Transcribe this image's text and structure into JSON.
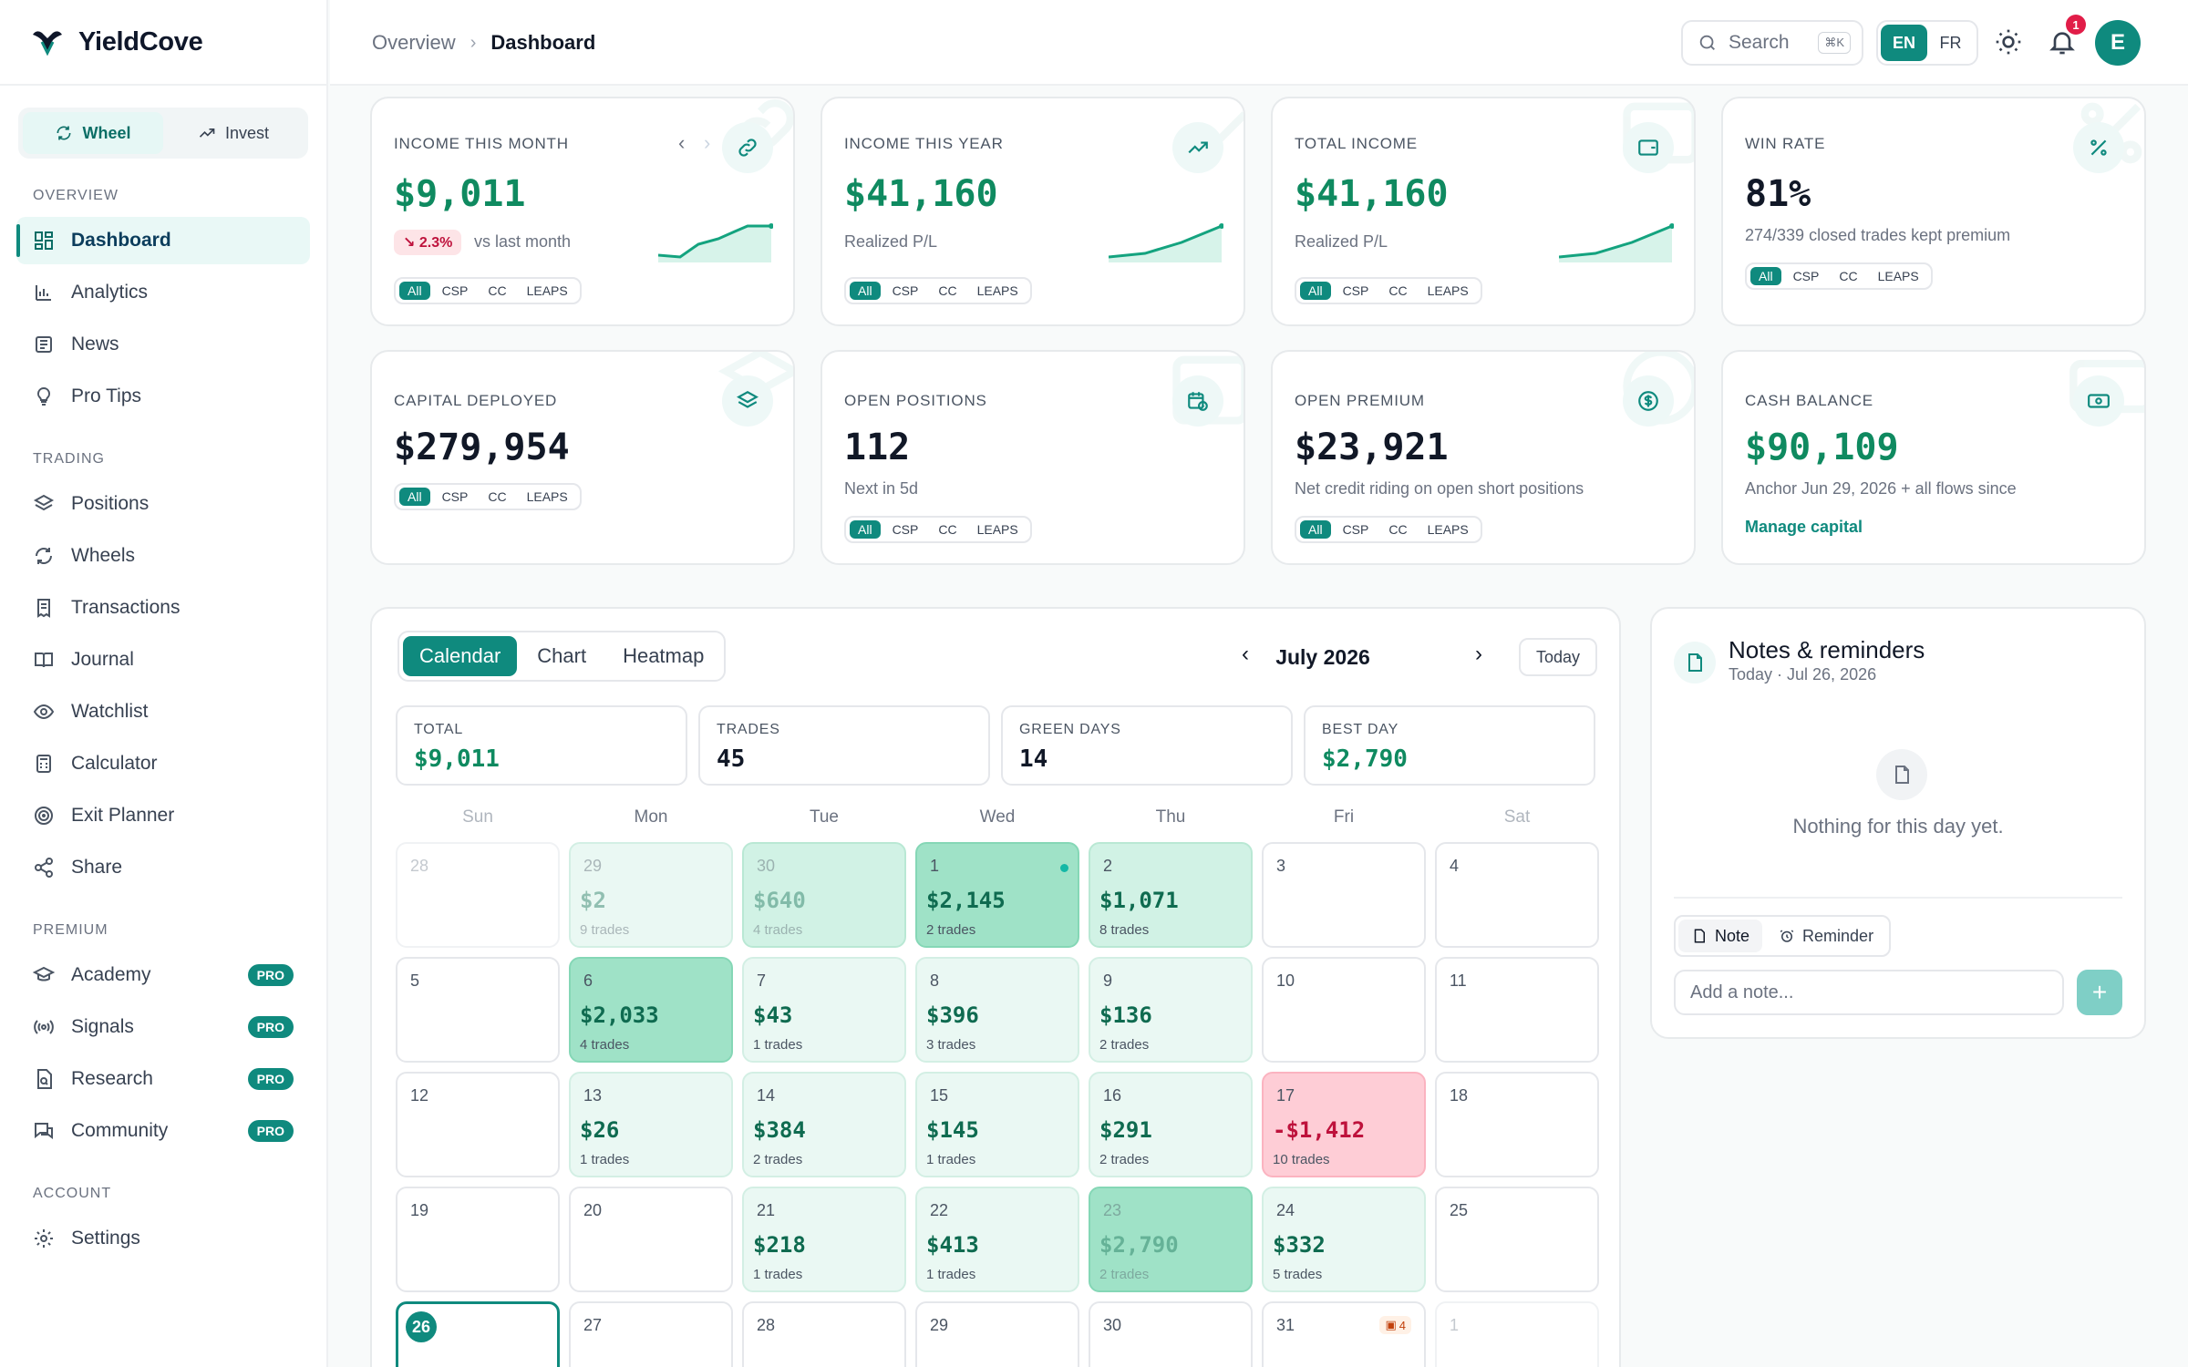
{
  "app": {
    "name": "YieldCove"
  },
  "mode_switch": [
    {
      "label": "Wheel",
      "icon": "refresh-icon",
      "active": true
    },
    {
      "label": "Invest",
      "icon": "trend-icon",
      "active": false
    }
  ],
  "sidebar": {
    "overview_label": "OVERVIEW",
    "trading_label": "TRADING",
    "premium_label": "PREMIUM",
    "account_label": "ACCOUNT",
    "items": [
      {
        "label": "Dashboard"
      },
      {
        "label": "Analytics"
      },
      {
        "label": "News"
      },
      {
        "label": "Pro Tips"
      },
      {
        "label": "Positions"
      },
      {
        "label": "Wheels"
      },
      {
        "label": "Transactions"
      },
      {
        "label": "Journal"
      },
      {
        "label": "Watchlist"
      },
      {
        "label": "Calculator"
      },
      {
        "label": "Exit Planner"
      },
      {
        "label": "Share"
      },
      {
        "label": "Academy",
        "badge": "PRO"
      },
      {
        "label": "Signals",
        "badge": "PRO"
      },
      {
        "label": "Research",
        "badge": "PRO"
      },
      {
        "label": "Community",
        "badge": "PRO"
      },
      {
        "label": "Settings"
      }
    ]
  },
  "header": {
    "breadcrumb": [
      "Overview",
      "Dashboard"
    ],
    "search_label": "Search",
    "search_shortcut": "⌘K",
    "lang": [
      "EN",
      "FR"
    ],
    "notification_count": "1",
    "avatar_initial": "E"
  },
  "filters": [
    "All",
    "CSP",
    "CC",
    "LEAPS"
  ],
  "kpis": [
    {
      "label": "INCOME THIS MONTH",
      "value": "$9,011",
      "delta": "↘ 2.3%",
      "sub": "vs last month"
    },
    {
      "label": "INCOME THIS YEAR",
      "value": "$41,160",
      "sub": "Realized P/L"
    },
    {
      "label": "TOTAL INCOME",
      "value": "$41,160",
      "sub": "Realized P/L"
    },
    {
      "label": "WIN RATE",
      "value": "81%",
      "sub": "274/339 closed trades kept premium"
    },
    {
      "label": "CAPITAL DEPLOYED",
      "value": "$279,954"
    },
    {
      "label": "OPEN POSITIONS",
      "value": "112",
      "sub": "Next in 5d"
    },
    {
      "label": "OPEN PREMIUM",
      "value": "$23,921",
      "sub": "Net credit riding on open short positions"
    },
    {
      "label": "CASH BALANCE",
      "value": "$90,109",
      "sub": "Anchor Jun 29, 2026 + all flows since",
      "link": "Manage capital"
    }
  ],
  "calendar": {
    "tabs": [
      "Calendar",
      "Chart",
      "Heatmap"
    ],
    "month": "July 2026",
    "today_label": "Today",
    "stats": [
      {
        "label": "TOTAL",
        "value": "$9,011"
      },
      {
        "label": "TRADES",
        "value": "45"
      },
      {
        "label": "GREEN DAYS",
        "value": "14"
      },
      {
        "label": "BEST DAY",
        "value": "$2,790"
      }
    ],
    "weekdays": [
      "Sun",
      "Mon",
      "Tue",
      "Wed",
      "Thu",
      "Fri",
      "Sat"
    ],
    "days": [
      {
        "d": "28",
        "amt": "",
        "tr": "",
        "lvl": "ghost"
      },
      {
        "d": "29",
        "amt": "$2",
        "tr": "9 trades",
        "lvl": "l1 muted"
      },
      {
        "d": "30",
        "amt": "$640",
        "tr": "4 trades",
        "lvl": "l2 muted"
      },
      {
        "d": "1",
        "amt": "$2,145",
        "tr": "2 trades",
        "lvl": "l3"
      },
      {
        "d": "2",
        "amt": "$1,071",
        "tr": "8 trades",
        "lvl": "l2"
      },
      {
        "d": "3",
        "amt": "",
        "tr": "",
        "lvl": ""
      },
      {
        "d": "4",
        "amt": "",
        "tr": "",
        "lvl": ""
      },
      {
        "d": "5",
        "amt": "",
        "tr": "",
        "lvl": ""
      },
      {
        "d": "6",
        "amt": "$2,033",
        "tr": "4 trades",
        "lvl": "l3"
      },
      {
        "d": "7",
        "amt": "$43",
        "tr": "1 trades",
        "lvl": "l1"
      },
      {
        "d": "8",
        "amt": "$396",
        "tr": "3 trades",
        "lvl": "l1"
      },
      {
        "d": "9",
        "amt": "$136",
        "tr": "2 trades",
        "lvl": "l1"
      },
      {
        "d": "10",
        "amt": "",
        "tr": "",
        "lvl": ""
      },
      {
        "d": "11",
        "amt": "",
        "tr": "",
        "lvl": ""
      },
      {
        "d": "12",
        "amt": "",
        "tr": "",
        "lvl": ""
      },
      {
        "d": "13",
        "amt": "$26",
        "tr": "1 trades",
        "lvl": "l1"
      },
      {
        "d": "14",
        "amt": "$384",
        "tr": "2 trades",
        "lvl": "l1"
      },
      {
        "d": "15",
        "amt": "$145",
        "tr": "1 trades",
        "lvl": "l1"
      },
      {
        "d": "16",
        "amt": "$291",
        "tr": "2 trades",
        "lvl": "l1"
      },
      {
        "d": "17",
        "amt": "-$1,412",
        "tr": "10 trades",
        "lvl": "neg"
      },
      {
        "d": "18",
        "amt": "",
        "tr": "",
        "lvl": ""
      },
      {
        "d": "19",
        "amt": "",
        "tr": "",
        "lvl": ""
      },
      {
        "d": "20",
        "amt": "",
        "tr": "",
        "lvl": ""
      },
      {
        "d": "21",
        "amt": "$218",
        "tr": "1 trades",
        "lvl": "l1"
      },
      {
        "d": "22",
        "amt": "$413",
        "tr": "1 trades",
        "lvl": "l1"
      },
      {
        "d": "23",
        "amt": "$2,790",
        "tr": "2 trades",
        "lvl": "l3 muted"
      },
      {
        "d": "24",
        "amt": "$332",
        "tr": "5 trades",
        "lvl": "l1"
      },
      {
        "d": "25",
        "amt": "",
        "tr": "",
        "lvl": ""
      },
      {
        "d": "26",
        "amt": "",
        "tr": "",
        "lvl": "today"
      },
      {
        "d": "27",
        "amt": "",
        "tr": "",
        "lvl": ""
      },
      {
        "d": "28",
        "amt": "",
        "tr": "",
        "lvl": ""
      },
      {
        "d": "29",
        "amt": "",
        "tr": "",
        "lvl": ""
      },
      {
        "d": "30",
        "amt": "",
        "tr": "",
        "lvl": ""
      },
      {
        "d": "31",
        "amt": "",
        "tr": "",
        "lvl": "",
        "badge": "4"
      },
      {
        "d": "1",
        "amt": "",
        "tr": "",
        "lvl": "ghost"
      }
    ]
  },
  "notes": {
    "title": "Notes & reminders",
    "date": "Today · Jul 26, 2026",
    "empty": "Nothing for this day yet.",
    "toggle": [
      "Note",
      "Reminder"
    ],
    "placeholder": "Add a note...",
    "add": "+"
  },
  "colors": {
    "accent": "#0f8a7e",
    "positive": "#0f8a60",
    "negative": "#be123c"
  }
}
